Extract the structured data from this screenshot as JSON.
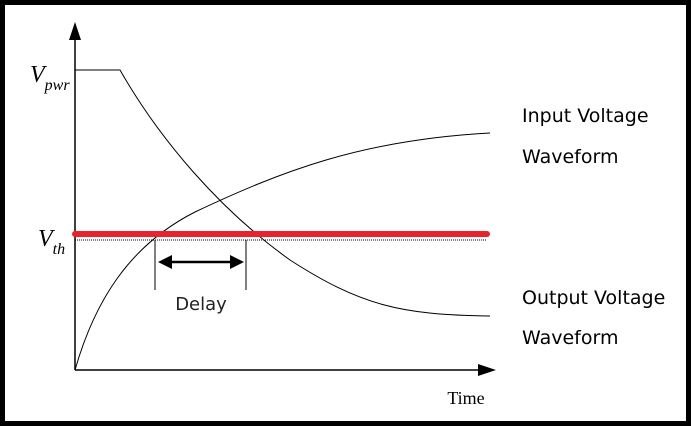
{
  "labels": {
    "v_pwr": {
      "main": "V",
      "sub": "pwr"
    },
    "v_th": {
      "main": "V",
      "sub": "th"
    }
  },
  "curves": [
    {
      "label_lines": [
        "Input Voltage",
        "Waveform"
      ]
    },
    {
      "label_lines": [
        "Output Voltage",
        "Waveform"
      ]
    }
  ],
  "delay": "Delay",
  "x_axis": "Time"
}
